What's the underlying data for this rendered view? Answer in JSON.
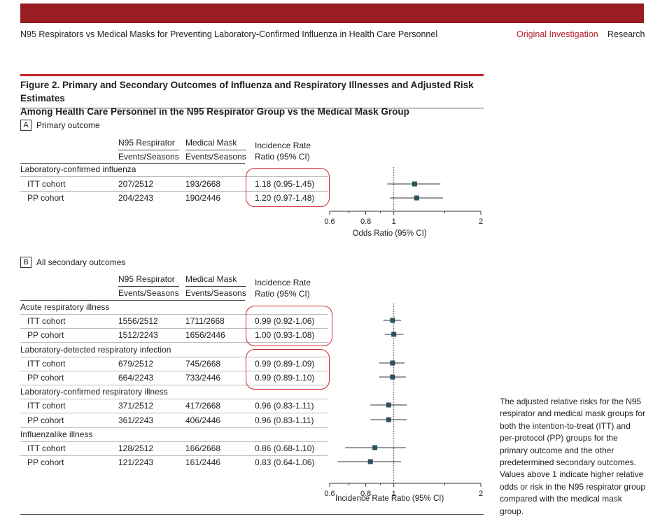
{
  "header": {
    "running_title": "N95 Respirators vs Medical Masks for Preventing Laboratory-Confirmed Influenza in Health Care Personnel",
    "section_label": "Original Investigation",
    "section_sub": "Research",
    "bar_color": "#9a1d21",
    "accent_color": "#b5202a"
  },
  "figure": {
    "title_line1": "Figure 2. Primary and Secondary Outcomes of Influenza and Respiratory Illnesses and Adjusted Risk Estimates",
    "title_line2": "Among Health Care Personnel in the N95 Respirator Group vs the Medical Mask Group",
    "caption": "The adjusted relative risks for the N95 respirator and medical mask groups for both the intention-to-treat (ITT) and per-protocol (PP) groups for the primary outcome and the other predetermined secondary outcomes. Values above 1 indicate higher relative odds or risk in the N95 respirator group compared with the medical mask group."
  },
  "columns": {
    "n95_line1": "N95 Respirator",
    "n95_line2": "Events/Seasons",
    "mask_line1": "Medical Mask",
    "mask_line2": "Events/Seasons",
    "irr_line1": "Incidence Rate",
    "irr_line2": "Ratio (95% CI)"
  },
  "panelA": {
    "letter": "A",
    "title": "Primary outcome",
    "group": "Laboratory-confirmed influenza",
    "rows": [
      {
        "label": "ITT cohort",
        "n95": "207/2512",
        "mask": "193/2668",
        "irr": "1.18 (0.95-1.45)"
      },
      {
        "label": "PP cohort",
        "n95": "204/2243",
        "mask": "190/2446",
        "irr": "1.20 (0.97-1.48)"
      }
    ],
    "axis_label": "Odds Ratio (95% CI)"
  },
  "panelB": {
    "letter": "B",
    "title": "All secondary outcomes",
    "groups": [
      {
        "name": "Acute respiratory illness",
        "rows": [
          {
            "label": "ITT cohort",
            "n95": "1556/2512",
            "mask": "1711/2668",
            "irr": "0.99 (0.92-1.06)"
          },
          {
            "label": "PP cohort",
            "n95": "1512/2243",
            "mask": "1656/2446",
            "irr": "1.00 (0.93-1.08)"
          }
        ]
      },
      {
        "name": "Laboratory-detected respiratory infection",
        "rows": [
          {
            "label": "ITT cohort",
            "n95": "679/2512",
            "mask": "745/2668",
            "irr": "0.99 (0.89-1.09)"
          },
          {
            "label": "PP cohort",
            "n95": "664/2243",
            "mask": "733/2446",
            "irr": "0.99 (0.89-1.10)"
          }
        ]
      },
      {
        "name": "Laboratory-confirmed respiratory illness",
        "rows": [
          {
            "label": "ITT cohort",
            "n95": "371/2512",
            "mask": "417/2668",
            "irr": "0.96 (0.83-1.11)"
          },
          {
            "label": "PP cohort",
            "n95": "361/2243",
            "mask": "406/2446",
            "irr": "0.96 (0.83-1.11)"
          }
        ]
      },
      {
        "name": "Influenzalike illness",
        "rows": [
          {
            "label": "ITT cohort",
            "n95": "128/2512",
            "mask": "166/2668",
            "irr": "0.86 (0.68-1.10)"
          },
          {
            "label": "PP cohort",
            "n95": "121/2243",
            "mask": "161/2446",
            "irr": "0.83 (0.64-1.06)"
          }
        ]
      }
    ],
    "axis_label": "Incidence Rate Ratio (95% CI)"
  },
  "chart_data": [
    {
      "type": "scatter",
      "xlabel": "Odds Ratio (95% CI)",
      "xscale": "log",
      "xlim": [
        0.6,
        2
      ],
      "xticks": [
        "0.6",
        "0.8",
        "1",
        "2"
      ],
      "reference_line": 1,
      "marker_color": "#2f4f5f",
      "points": [
        {
          "label": "ITT cohort",
          "est": 1.18,
          "lo": 0.95,
          "hi": 1.45
        },
        {
          "label": "PP cohort",
          "est": 1.2,
          "lo": 0.97,
          "hi": 1.48
        }
      ]
    },
    {
      "type": "scatter",
      "xlabel": "Incidence Rate Ratio (95% CI)",
      "xscale": "log",
      "xlim": [
        0.6,
        2
      ],
      "xticks": [
        "0.6",
        "0.8",
        "1",
        "2"
      ],
      "reference_line": 1,
      "marker_color": "#2f4f5f",
      "points": [
        {
          "label": "ITT cohort",
          "est": 0.99,
          "lo": 0.92,
          "hi": 1.06
        },
        {
          "label": "PP cohort",
          "est": 1.0,
          "lo": 0.93,
          "hi": 1.08
        },
        {
          "label": "ITT cohort",
          "est": 0.99,
          "lo": 0.89,
          "hi": 1.09
        },
        {
          "label": "PP cohort",
          "est": 0.99,
          "lo": 0.89,
          "hi": 1.1
        },
        {
          "label": "ITT cohort",
          "est": 0.96,
          "lo": 0.83,
          "hi": 1.11
        },
        {
          "label": "PP cohort",
          "est": 0.96,
          "lo": 0.83,
          "hi": 1.11
        },
        {
          "label": "ITT cohort",
          "est": 0.86,
          "lo": 0.68,
          "hi": 1.1
        },
        {
          "label": "PP cohort",
          "est": 0.83,
          "lo": 0.64,
          "hi": 1.06
        }
      ]
    }
  ]
}
